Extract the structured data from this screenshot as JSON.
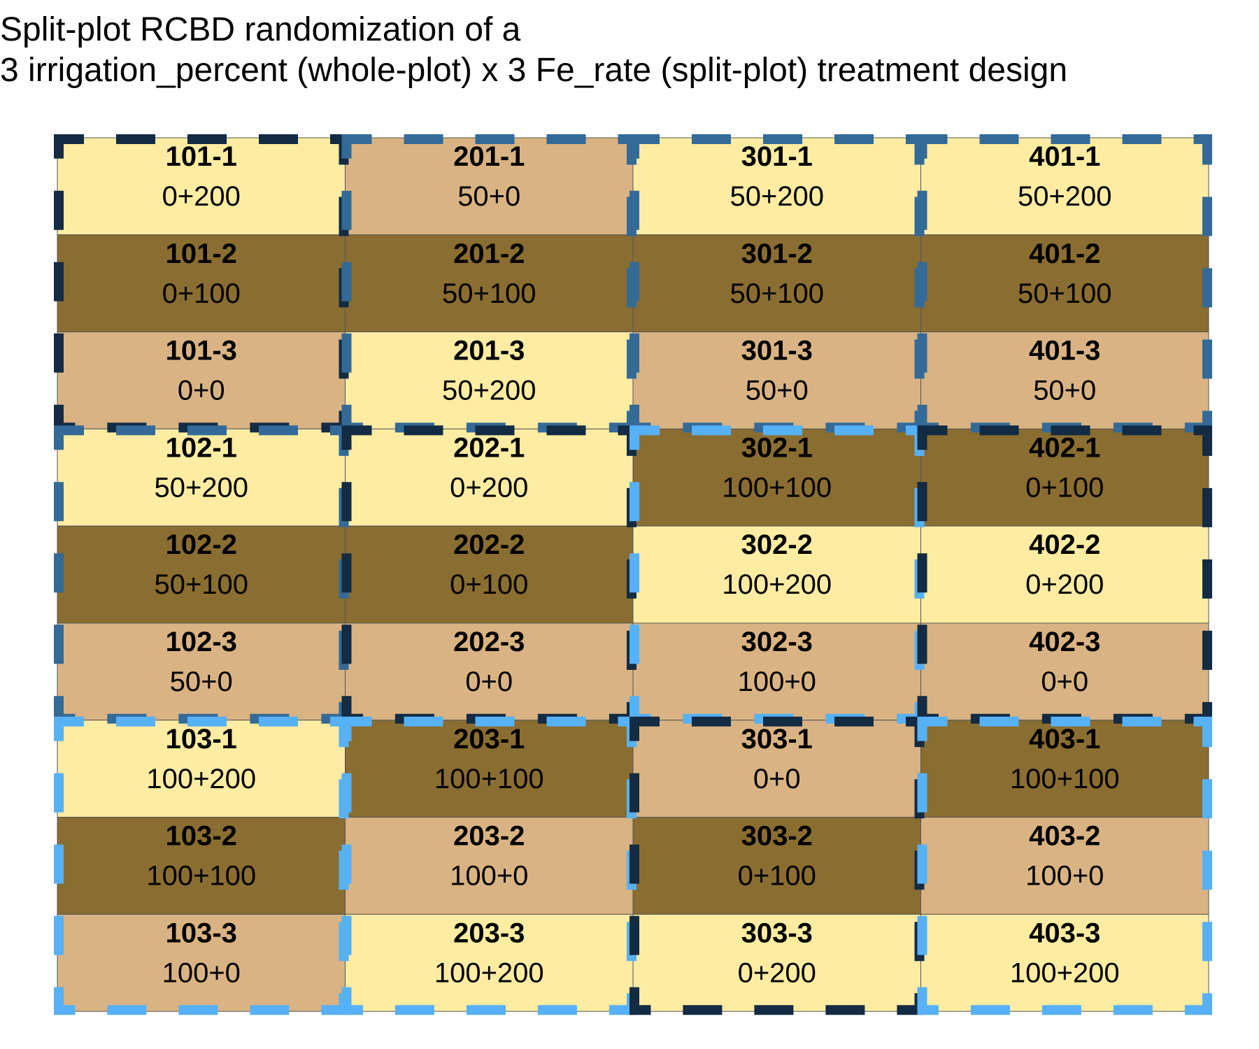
{
  "title": {
    "line1": "Split-plot RCBD randomization of a",
    "line2": "3 irrigation_percent (whole-plot) x 3 Fe_rate (split-plot) treatment design"
  },
  "colors": {
    "fe_0": "#d9b383",
    "fe_100": "#8a6d31",
    "fe_200": "#feeca2",
    "irrigation_0": "#132b43",
    "irrigation_50": "#336a98",
    "irrigation_100": "#56b1f7",
    "cell_border": "#555555"
  },
  "layout": {
    "columns": 4,
    "rows": 9
  },
  "whole_plots": [
    {
      "col": 0,
      "row_start": 0,
      "irrigation": 0
    },
    {
      "col": 0,
      "row_start": 3,
      "irrigation": 50
    },
    {
      "col": 0,
      "row_start": 6,
      "irrigation": 100
    },
    {
      "col": 1,
      "row_start": 0,
      "irrigation": 50
    },
    {
      "col": 1,
      "row_start": 3,
      "irrigation": 0
    },
    {
      "col": 1,
      "row_start": 6,
      "irrigation": 100
    },
    {
      "col": 2,
      "row_start": 0,
      "irrigation": 50
    },
    {
      "col": 2,
      "row_start": 3,
      "irrigation": 100
    },
    {
      "col": 2,
      "row_start": 6,
      "irrigation": 0
    },
    {
      "col": 3,
      "row_start": 0,
      "irrigation": 50
    },
    {
      "col": 3,
      "row_start": 3,
      "irrigation": 0
    },
    {
      "col": 3,
      "row_start": 6,
      "irrigation": 100
    }
  ],
  "plots": [
    {
      "col": 0,
      "row": 0,
      "id": "101-1",
      "treatment": "0+200",
      "fe": 200
    },
    {
      "col": 0,
      "row": 1,
      "id": "101-2",
      "treatment": "0+100",
      "fe": 100
    },
    {
      "col": 0,
      "row": 2,
      "id": "101-3",
      "treatment": "0+0",
      "fe": 0
    },
    {
      "col": 0,
      "row": 3,
      "id": "102-1",
      "treatment": "50+200",
      "fe": 200
    },
    {
      "col": 0,
      "row": 4,
      "id": "102-2",
      "treatment": "50+100",
      "fe": 100
    },
    {
      "col": 0,
      "row": 5,
      "id": "102-3",
      "treatment": "50+0",
      "fe": 0
    },
    {
      "col": 0,
      "row": 6,
      "id": "103-1",
      "treatment": "100+200",
      "fe": 200
    },
    {
      "col": 0,
      "row": 7,
      "id": "103-2",
      "treatment": "100+100",
      "fe": 100
    },
    {
      "col": 0,
      "row": 8,
      "id": "103-3",
      "treatment": "100+0",
      "fe": 0
    },
    {
      "col": 1,
      "row": 0,
      "id": "201-1",
      "treatment": "50+0",
      "fe": 0
    },
    {
      "col": 1,
      "row": 1,
      "id": "201-2",
      "treatment": "50+100",
      "fe": 100
    },
    {
      "col": 1,
      "row": 2,
      "id": "201-3",
      "treatment": "50+200",
      "fe": 200
    },
    {
      "col": 1,
      "row": 3,
      "id": "202-1",
      "treatment": "0+200",
      "fe": 200
    },
    {
      "col": 1,
      "row": 4,
      "id": "202-2",
      "treatment": "0+100",
      "fe": 100
    },
    {
      "col": 1,
      "row": 5,
      "id": "202-3",
      "treatment": "0+0",
      "fe": 0
    },
    {
      "col": 1,
      "row": 6,
      "id": "203-1",
      "treatment": "100+100",
      "fe": 100
    },
    {
      "col": 1,
      "row": 7,
      "id": "203-2",
      "treatment": "100+0",
      "fe": 0
    },
    {
      "col": 1,
      "row": 8,
      "id": "203-3",
      "treatment": "100+200",
      "fe": 200
    },
    {
      "col": 2,
      "row": 0,
      "id": "301-1",
      "treatment": "50+200",
      "fe": 200
    },
    {
      "col": 2,
      "row": 1,
      "id": "301-2",
      "treatment": "50+100",
      "fe": 100
    },
    {
      "col": 2,
      "row": 2,
      "id": "301-3",
      "treatment": "50+0",
      "fe": 0
    },
    {
      "col": 2,
      "row": 3,
      "id": "302-1",
      "treatment": "100+100",
      "fe": 100
    },
    {
      "col": 2,
      "row": 4,
      "id": "302-2",
      "treatment": "100+200",
      "fe": 200
    },
    {
      "col": 2,
      "row": 5,
      "id": "302-3",
      "treatment": "100+0",
      "fe": 0
    },
    {
      "col": 2,
      "row": 6,
      "id": "303-1",
      "treatment": "0+0",
      "fe": 0
    },
    {
      "col": 2,
      "row": 7,
      "id": "303-2",
      "treatment": "0+100",
      "fe": 100
    },
    {
      "col": 2,
      "row": 8,
      "id": "303-3",
      "treatment": "0+200",
      "fe": 200
    },
    {
      "col": 3,
      "row": 0,
      "id": "401-1",
      "treatment": "50+200",
      "fe": 200
    },
    {
      "col": 3,
      "row": 1,
      "id": "401-2",
      "treatment": "50+100",
      "fe": 100
    },
    {
      "col": 3,
      "row": 2,
      "id": "401-3",
      "treatment": "50+0",
      "fe": 0
    },
    {
      "col": 3,
      "row": 3,
      "id": "402-1",
      "treatment": "0+100",
      "fe": 100
    },
    {
      "col": 3,
      "row": 4,
      "id": "402-2",
      "treatment": "0+200",
      "fe": 200
    },
    {
      "col": 3,
      "row": 5,
      "id": "402-3",
      "treatment": "0+0",
      "fe": 0
    },
    {
      "col": 3,
      "row": 6,
      "id": "403-1",
      "treatment": "100+100",
      "fe": 100
    },
    {
      "col": 3,
      "row": 7,
      "id": "403-2",
      "treatment": "100+0",
      "fe": 0
    },
    {
      "col": 3,
      "row": 8,
      "id": "403-3",
      "treatment": "100+200",
      "fe": 200
    }
  ]
}
